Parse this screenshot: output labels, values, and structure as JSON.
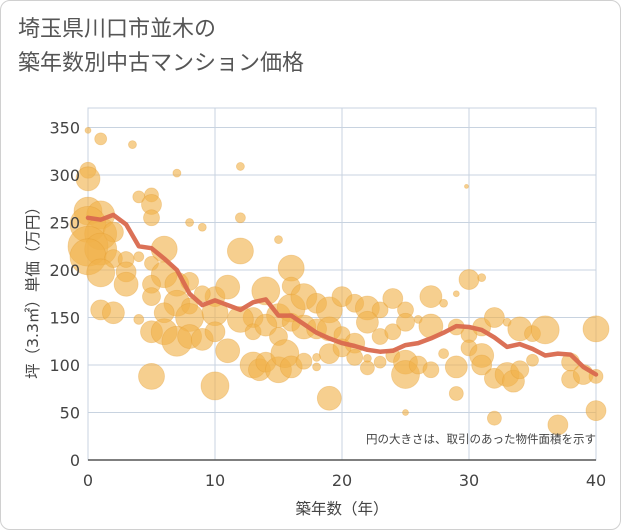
{
  "title_lines": [
    "埼玉県川口市並木の",
    "築年数別中古マンション価格"
  ],
  "chart_data": {
    "type": "scatter",
    "xlabel": "築年数（年）",
    "ylabel": "坪（3.3㎡）単価（万円）",
    "xlim": [
      0,
      40
    ],
    "ylim": [
      0,
      360
    ],
    "xticks": [
      0,
      10,
      20,
      30,
      40
    ],
    "yticks": [
      0,
      50,
      100,
      150,
      200,
      250,
      300,
      350
    ],
    "grid": true,
    "annotation": "円の大きさは、取引のあった物件面積を示す",
    "colors": {
      "bubble": "#f0b24a",
      "bubble_stroke": "#e39a2e",
      "trend": "#d9694e",
      "grid": "#c8d3e0",
      "plot_bg": "#ffffff"
    },
    "trend": {
      "x": [
        0,
        1,
        2,
        3,
        4,
        5,
        6,
        7,
        8,
        9,
        10,
        11,
        12,
        13,
        14,
        15,
        16,
        17,
        18,
        19,
        20,
        21,
        22,
        23,
        24,
        25,
        26,
        27,
        28,
        29,
        30,
        31,
        32,
        33,
        34,
        35,
        36,
        37,
        38,
        39,
        40
      ],
      "y": [
        255,
        253,
        258,
        248,
        225,
        223,
        212,
        200,
        175,
        163,
        168,
        163,
        158,
        166,
        169,
        152,
        152,
        143,
        134,
        128,
        123,
        120,
        116,
        114,
        115,
        121,
        123,
        128,
        134,
        141,
        140,
        137,
        129,
        119,
        122,
        117,
        110,
        112,
        111,
        98,
        90
      ]
    },
    "bubbles": [
      {
        "x": 0,
        "y": 347,
        "s": 3
      },
      {
        "x": 1,
        "y": 338,
        "s": 6
      },
      {
        "x": 3.5,
        "y": 332,
        "s": 4
      },
      {
        "x": 0,
        "y": 305,
        "s": 8
      },
      {
        "x": 0,
        "y": 296,
        "s": 12
      },
      {
        "x": 7,
        "y": 302,
        "s": 4
      },
      {
        "x": 12,
        "y": 309,
        "s": 4
      },
      {
        "x": 29.8,
        "y": 288,
        "s": 2
      },
      {
        "x": 4,
        "y": 277,
        "s": 6
      },
      {
        "x": 5,
        "y": 279,
        "s": 7
      },
      {
        "x": 5,
        "y": 269,
        "s": 10
      },
      {
        "x": 5,
        "y": 255,
        "s": 8
      },
      {
        "x": 12,
        "y": 255,
        "s": 5
      },
      {
        "x": 8,
        "y": 250,
        "s": 4
      },
      {
        "x": 0,
        "y": 262,
        "s": 14
      },
      {
        "x": 1,
        "y": 258,
        "s": 14
      },
      {
        "x": 0,
        "y": 248,
        "s": 18
      },
      {
        "x": 1,
        "y": 238,
        "s": 16
      },
      {
        "x": 2,
        "y": 240,
        "s": 10
      },
      {
        "x": 0,
        "y": 225,
        "s": 20
      },
      {
        "x": 1,
        "y": 222,
        "s": 16
      },
      {
        "x": 0,
        "y": 214,
        "s": 18
      },
      {
        "x": 2,
        "y": 212,
        "s": 9
      },
      {
        "x": 3,
        "y": 211,
        "s": 8
      },
      {
        "x": 6,
        "y": 222,
        "s": 13
      },
      {
        "x": 9,
        "y": 245,
        "s": 4
      },
      {
        "x": 12,
        "y": 220,
        "s": 13
      },
      {
        "x": 15,
        "y": 232,
        "s": 4
      },
      {
        "x": 1,
        "y": 197,
        "s": 14
      },
      {
        "x": 3,
        "y": 198,
        "s": 10
      },
      {
        "x": 4,
        "y": 214,
        "s": 5
      },
      {
        "x": 5,
        "y": 207,
        "s": 7
      },
      {
        "x": 6,
        "y": 195,
        "s": 13
      },
      {
        "x": 7,
        "y": 185,
        "s": 12
      },
      {
        "x": 8,
        "y": 188,
        "s": 9
      },
      {
        "x": 3,
        "y": 185,
        "s": 12
      },
      {
        "x": 5,
        "y": 185,
        "s": 9
      },
      {
        "x": 10,
        "y": 172,
        "s": 10
      },
      {
        "x": 11,
        "y": 182,
        "s": 12
      },
      {
        "x": 14,
        "y": 178,
        "s": 14
      },
      {
        "x": 16,
        "y": 202,
        "s": 13
      },
      {
        "x": 16,
        "y": 183,
        "s": 9
      },
      {
        "x": 5,
        "y": 172,
        "s": 9
      },
      {
        "x": 7,
        "y": 165,
        "s": 13
      },
      {
        "x": 8,
        "y": 162,
        "s": 8
      },
      {
        "x": 9,
        "y": 175,
        "s": 8
      },
      {
        "x": 6,
        "y": 155,
        "s": 10
      },
      {
        "x": 8,
        "y": 150,
        "s": 14
      },
      {
        "x": 10,
        "y": 155,
        "s": 13
      },
      {
        "x": 13,
        "y": 150,
        "s": 10
      },
      {
        "x": 15,
        "y": 152,
        "s": 12
      },
      {
        "x": 16,
        "y": 160,
        "s": 14
      },
      {
        "x": 17,
        "y": 172,
        "s": 13
      },
      {
        "x": 18,
        "y": 165,
        "s": 10
      },
      {
        "x": 19,
        "y": 158,
        "s": 13
      },
      {
        "x": 20,
        "y": 172,
        "s": 10
      },
      {
        "x": 21,
        "y": 165,
        "s": 9
      },
      {
        "x": 22,
        "y": 160,
        "s": 12
      },
      {
        "x": 23,
        "y": 158,
        "s": 8
      },
      {
        "x": 24,
        "y": 170,
        "s": 10
      },
      {
        "x": 25,
        "y": 158,
        "s": 8
      },
      {
        "x": 27,
        "y": 172,
        "s": 11
      },
      {
        "x": 28,
        "y": 165,
        "s": 4
      },
      {
        "x": 29,
        "y": 175,
        "s": 3
      },
      {
        "x": 30,
        "y": 190,
        "s": 10
      },
      {
        "x": 31,
        "y": 192,
        "s": 4
      },
      {
        "x": 26,
        "y": 148,
        "s": 4
      },
      {
        "x": 1,
        "y": 158,
        "s": 10
      },
      {
        "x": 2,
        "y": 155,
        "s": 11
      },
      {
        "x": 4,
        "y": 148,
        "s": 5
      },
      {
        "x": 5,
        "y": 135,
        "s": 11
      },
      {
        "x": 6,
        "y": 135,
        "s": 13
      },
      {
        "x": 7,
        "y": 125,
        "s": 15
      },
      {
        "x": 8,
        "y": 130,
        "s": 12
      },
      {
        "x": 9,
        "y": 127,
        "s": 11
      },
      {
        "x": 10,
        "y": 135,
        "s": 10
      },
      {
        "x": 11,
        "y": 115,
        "s": 12
      },
      {
        "x": 12,
        "y": 148,
        "s": 13
      },
      {
        "x": 13,
        "y": 135,
        "s": 8
      },
      {
        "x": 14,
        "y": 142,
        "s": 11
      },
      {
        "x": 15,
        "y": 130,
        "s": 9
      },
      {
        "x": 16,
        "y": 145,
        "s": 9
      },
      {
        "x": 17,
        "y": 140,
        "s": 12
      },
      {
        "x": 18,
        "y": 138,
        "s": 10
      },
      {
        "x": 19,
        "y": 138,
        "s": 12
      },
      {
        "x": 20,
        "y": 132,
        "s": 8
      },
      {
        "x": 21,
        "y": 123,
        "s": 10
      },
      {
        "x": 22,
        "y": 145,
        "s": 11
      },
      {
        "x": 23,
        "y": 130,
        "s": 8
      },
      {
        "x": 24,
        "y": 135,
        "s": 8
      },
      {
        "x": 25,
        "y": 145,
        "s": 9
      },
      {
        "x": 27,
        "y": 141,
        "s": 12
      },
      {
        "x": 29,
        "y": 140,
        "s": 8
      },
      {
        "x": 30,
        "y": 132,
        "s": 8
      },
      {
        "x": 31,
        "y": 140,
        "s": 9
      },
      {
        "x": 32,
        "y": 150,
        "s": 10
      },
      {
        "x": 33,
        "y": 145,
        "s": 4
      },
      {
        "x": 34,
        "y": 138,
        "s": 12
      },
      {
        "x": 35,
        "y": 133,
        "s": 8
      },
      {
        "x": 36,
        "y": 137,
        "s": 14
      },
      {
        "x": 40,
        "y": 138,
        "s": 13
      },
      {
        "x": 13,
        "y": 100,
        "s": 13
      },
      {
        "x": 13.5,
        "y": 95,
        "s": 11
      },
      {
        "x": 14,
        "y": 103,
        "s": 10
      },
      {
        "x": 15,
        "y": 95,
        "s": 13
      },
      {
        "x": 15.5,
        "y": 112,
        "s": 14
      },
      {
        "x": 16,
        "y": 98,
        "s": 11
      },
      {
        "x": 17,
        "y": 104,
        "s": 8
      },
      {
        "x": 18,
        "y": 108,
        "s": 4
      },
      {
        "x": 18,
        "y": 98,
        "s": 4
      },
      {
        "x": 19,
        "y": 112,
        "s": 10
      },
      {
        "x": 20,
        "y": 118,
        "s": 9
      },
      {
        "x": 21,
        "y": 108,
        "s": 8
      },
      {
        "x": 22,
        "y": 107,
        "s": 4
      },
      {
        "x": 22,
        "y": 97,
        "s": 7
      },
      {
        "x": 23,
        "y": 103,
        "s": 6
      },
      {
        "x": 24,
        "y": 110,
        "s": 7
      },
      {
        "x": 25,
        "y": 103,
        "s": 12
      },
      {
        "x": 25,
        "y": 90,
        "s": 14
      },
      {
        "x": 26,
        "y": 100,
        "s": 9
      },
      {
        "x": 27,
        "y": 95,
        "s": 8
      },
      {
        "x": 28,
        "y": 112,
        "s": 5
      },
      {
        "x": 29,
        "y": 98,
        "s": 11
      },
      {
        "x": 29,
        "y": 70,
        "s": 7
      },
      {
        "x": 30,
        "y": 118,
        "s": 8
      },
      {
        "x": 31,
        "y": 110,
        "s": 12
      },
      {
        "x": 31,
        "y": 100,
        "s": 10
      },
      {
        "x": 32,
        "y": 86,
        "s": 10
      },
      {
        "x": 33,
        "y": 90,
        "s": 12
      },
      {
        "x": 33.5,
        "y": 83,
        "s": 11
      },
      {
        "x": 34,
        "y": 95,
        "s": 9
      },
      {
        "x": 35,
        "y": 105,
        "s": 6
      },
      {
        "x": 38,
        "y": 103,
        "s": 9
      },
      {
        "x": 38,
        "y": 85,
        "s": 9
      },
      {
        "x": 39,
        "y": 90,
        "s": 10
      },
      {
        "x": 40,
        "y": 88,
        "s": 7
      },
      {
        "x": 5,
        "y": 88,
        "s": 13
      },
      {
        "x": 10,
        "y": 78,
        "s": 14
      },
      {
        "x": 19,
        "y": 65,
        "s": 12
      },
      {
        "x": 25,
        "y": 50,
        "s": 3
      },
      {
        "x": 32,
        "y": 44,
        "s": 7
      },
      {
        "x": 37,
        "y": 37,
        "s": 10
      },
      {
        "x": 40,
        "y": 52,
        "s": 10
      }
    ]
  }
}
